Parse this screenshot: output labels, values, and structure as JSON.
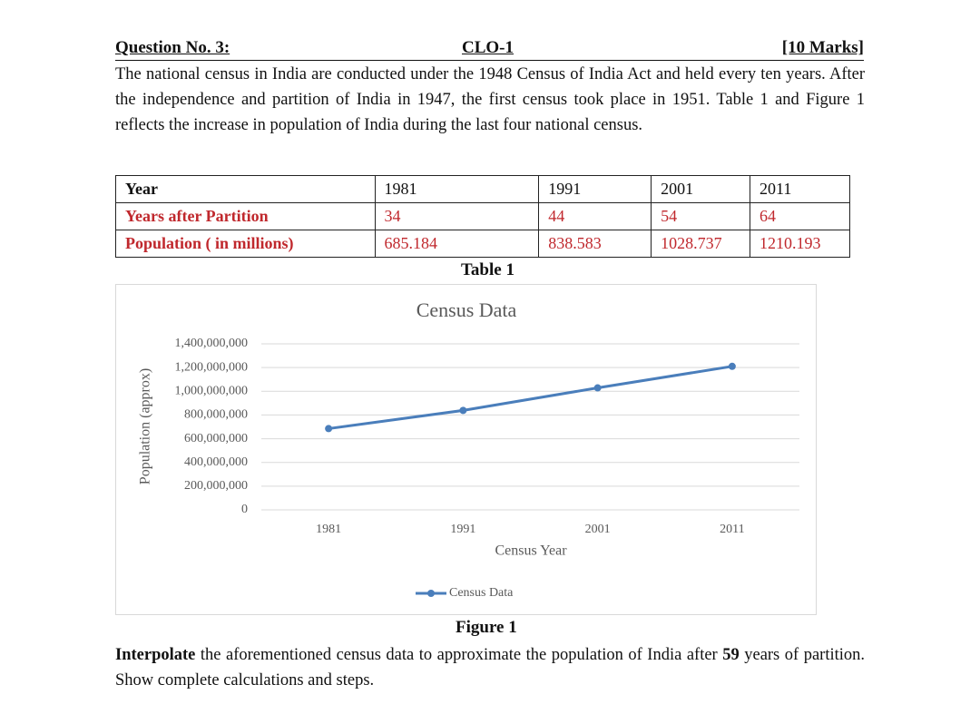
{
  "header": {
    "question": "Question No. 3:",
    "clo": "CLO-1",
    "marks": "[10 Marks]"
  },
  "intro": "The national census in India are conducted under the 1948 Census of India Act and held every ten years. After the independence and partition of India in 1947, the first census took place in 1951. Table 1 and Figure 1 reflects the increase in population of India during the last four national census.",
  "table": {
    "rows": [
      [
        "Year",
        1981,
        1991,
        2001,
        2011
      ],
      [
        "Years after Partition",
        34,
        44,
        54,
        64
      ],
      [
        "Population ( in millions)",
        685.184,
        838.583,
        1028.737,
        1210.193
      ]
    ],
    "caption": "Table 1"
  },
  "chart_data": {
    "type": "line",
    "title": "Census Data",
    "x_label": "Census Year",
    "y_label": "Population (approx)",
    "categories": [
      "1981",
      "1991",
      "2001",
      "2011"
    ],
    "series": [
      {
        "name": "Census Data",
        "color": "#4a7ebb",
        "values": [
          685184000,
          838583000,
          1028737000,
          1210193000
        ]
      }
    ],
    "ylim": [
      0,
      1400000000
    ],
    "yticks": [
      0,
      {
        "value": 200000000,
        "label": "200,000,000"
      },
      {
        "value": 400000000,
        "label": "400,000,000"
      },
      {
        "value": 600000000,
        "label": "600,000,000"
      },
      {
        "value": 800000000,
        "label": "800,000,000"
      },
      {
        "value": 1000000000,
        "label": "1,000,000,000"
      },
      {
        "value": 1200000000,
        "label": "1,200,000,000"
      },
      {
        "value": 1400000000,
        "label": "1,400,000,000"
      }
    ],
    "grid": true,
    "legend": "bottom"
  },
  "figure_caption": "Figure 1",
  "task": [
    "Interpolate",
    " the aforementioned census data to approximate the population of India after ",
    "59",
    " years of partition. Show complete calculations and steps."
  ]
}
